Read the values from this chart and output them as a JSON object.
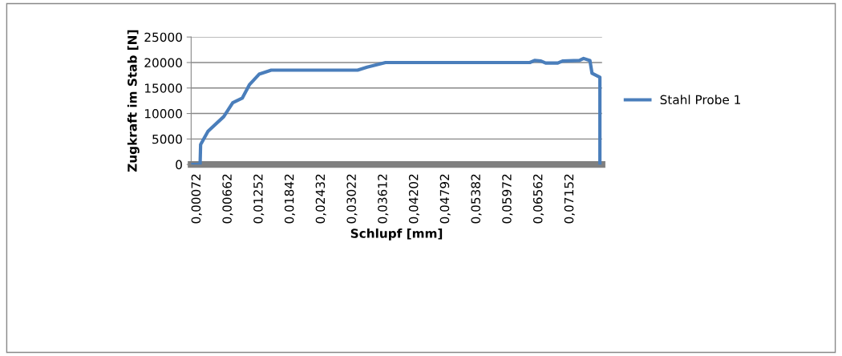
{
  "chart_data": {
    "type": "line",
    "xlabel": "Schlupf [mm]",
    "ylabel": "Zugkraft im Stab [N]",
    "series": [
      {
        "name": "Stahl Probe 1",
        "color": "#4a7ebb",
        "x": [
          -0.0004,
          0.0013,
          0.0014,
          0.0028,
          0.0058,
          0.0075,
          0.0093,
          0.0107,
          0.0125,
          0.0148,
          0.0312,
          0.033,
          0.0365,
          0.0639,
          0.0648,
          0.066,
          0.0669,
          0.0692,
          0.0701,
          0.0733,
          0.0741,
          0.0753,
          0.0757,
          0.0772,
          0.0772
        ],
        "values": [
          0,
          0,
          3900,
          6500,
          9400,
          12100,
          13000,
          15700,
          17700,
          18500,
          18500,
          19100,
          20000,
          20000,
          20400,
          20300,
          19900,
          19900,
          20300,
          20400,
          20800,
          20400,
          17900,
          17100,
          0
        ]
      }
    ],
    "xlim": [
      -0.0004,
      0.0776
    ],
    "xticks": [
      {
        "value": 0.00072,
        "label": "0,00072"
      },
      {
        "value": 0.00662,
        "label": "0,00662"
      },
      {
        "value": 0.01252,
        "label": "0,01252"
      },
      {
        "value": 0.01842,
        "label": "0,01842"
      },
      {
        "value": 0.02432,
        "label": "0,02432"
      },
      {
        "value": 0.03022,
        "label": "0,03022"
      },
      {
        "value": 0.03612,
        "label": "0,03612"
      },
      {
        "value": 0.04202,
        "label": "0,04202"
      },
      {
        "value": 0.04792,
        "label": "0,04792"
      },
      {
        "value": 0.05382,
        "label": "0,05382"
      },
      {
        "value": 0.05972,
        "label": "0,05972"
      },
      {
        "value": 0.06562,
        "label": "0,06562"
      },
      {
        "value": 0.07152,
        "label": "0,07152"
      }
    ],
    "ylim": [
      0,
      25000
    ],
    "yticks": [
      0,
      5000,
      10000,
      15000,
      20000,
      25000
    ],
    "grid": "y",
    "legend": "right",
    "marker": "none",
    "line_style": "solid"
  }
}
